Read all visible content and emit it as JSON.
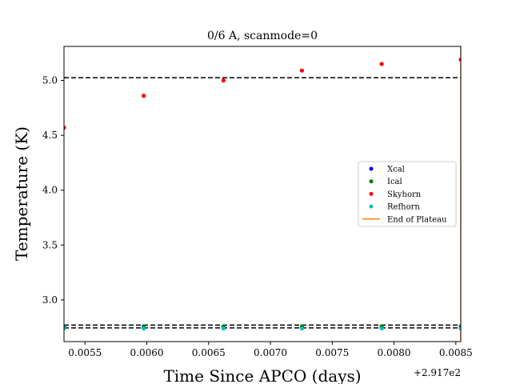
{
  "chart_data": {
    "type": "scatter",
    "title": "0/6 A, scanmode=0",
    "xlabel": "Time Since APCO (days)",
    "ylabel": "Temperature (K)",
    "x_offset_label": "+2.917e2",
    "x_ticks": [
      0.0055,
      0.006,
      0.0065,
      0.007,
      0.0075,
      0.008,
      0.0085
    ],
    "x_tick_labels": [
      "0.0055",
      "0.0060",
      "0.0065",
      "0.0070",
      "0.0075",
      "0.0080",
      "0.0085"
    ],
    "y_ticks": [
      3.0,
      3.5,
      4.0,
      4.5,
      5.0
    ],
    "y_tick_labels": [
      "3.0",
      "3.5",
      "4.0",
      "4.5",
      "5.0"
    ],
    "xlim": [
      0.00533,
      0.00854
    ],
    "ylim": [
      2.62,
      5.31
    ],
    "legend_position": "center-right",
    "series": [
      {
        "name": "Xcal",
        "color": "#0000ff",
        "x": [
          0.00533,
          0.005975,
          0.00662,
          0.007255,
          0.0079,
          0.00854
        ],
        "y": [
          2.745,
          2.745,
          2.745,
          2.745,
          2.745,
          2.745
        ]
      },
      {
        "name": "Ical",
        "color": "#008000",
        "x": [
          0.00533,
          0.005975,
          0.00662,
          0.007255,
          0.0079,
          0.00854
        ],
        "y": [
          2.76,
          2.76,
          2.76,
          2.76,
          2.76,
          2.76
        ]
      },
      {
        "name": "Skyhorn",
        "color": "#ff0000",
        "x": [
          0.00533,
          0.005975,
          0.00662,
          0.007255,
          0.0079,
          0.00854
        ],
        "y": [
          4.57,
          4.86,
          5.0,
          5.09,
          5.15,
          5.19
        ]
      },
      {
        "name": "Refhorn",
        "color": "#00bfbf",
        "x": [
          0.00533,
          0.005975,
          0.00662,
          0.007255,
          0.0079,
          0.00854
        ],
        "y": [
          2.74,
          2.74,
          2.74,
          2.74,
          2.74,
          2.74
        ]
      }
    ],
    "plateau_line": {
      "name": "End of Plateau",
      "color": "#ff7f0e",
      "x": 0.00854
    },
    "reference_lines": [
      5.025,
      2.77,
      2.745
    ],
    "reference_line_color": "#000000"
  }
}
